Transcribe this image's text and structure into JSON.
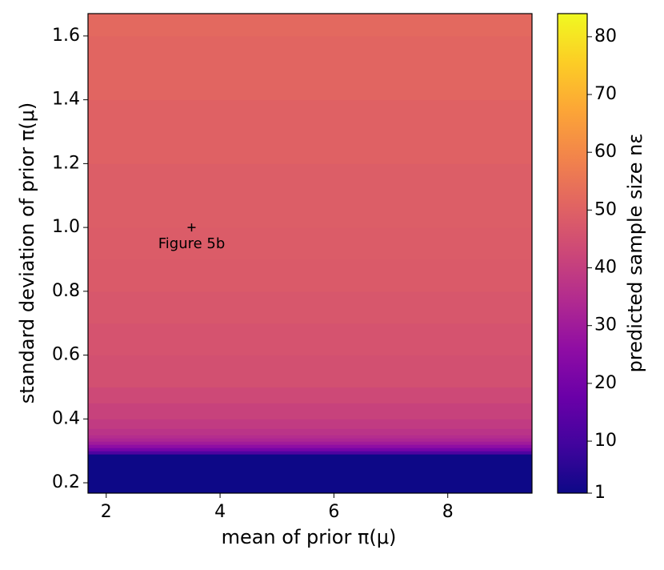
{
  "chart_data": {
    "type": "heatmap",
    "xlabel": "mean of prior π(μ)",
    "ylabel": "standard deviation of prior π(μ)",
    "colorbar_label": "predicted sample size nε",
    "colormap": "plasma",
    "xlim": [
      1.68,
      9.48
    ],
    "xticks": [
      2,
      4,
      6,
      8
    ],
    "ylim": [
      0.1675,
      1.67
    ],
    "yticks": [
      0.2,
      0.4,
      0.6,
      0.8,
      1.0,
      1.2,
      1.4,
      1.6
    ],
    "clim": [
      1,
      84
    ],
    "cticks": [
      1,
      10,
      20,
      30,
      40,
      50,
      60,
      70,
      80
    ],
    "y_bins": [
      0.1675,
      0.29,
      0.3,
      0.31,
      0.32,
      0.33,
      0.34,
      0.35,
      0.37,
      0.4,
      0.45,
      0.5,
      0.6,
      0.7,
      0.8,
      0.9,
      1.0,
      1.2,
      1.4,
      1.6,
      1.67
    ],
    "values": [
      1,
      12,
      20,
      26,
      30,
      33,
      35,
      37,
      39,
      41,
      43,
      45,
      46,
      47,
      48,
      48.5,
      49,
      50,
      51,
      52
    ],
    "annotations": [
      {
        "text": "Figure 5b",
        "x": 3.5,
        "y": 1.0
      }
    ]
  }
}
